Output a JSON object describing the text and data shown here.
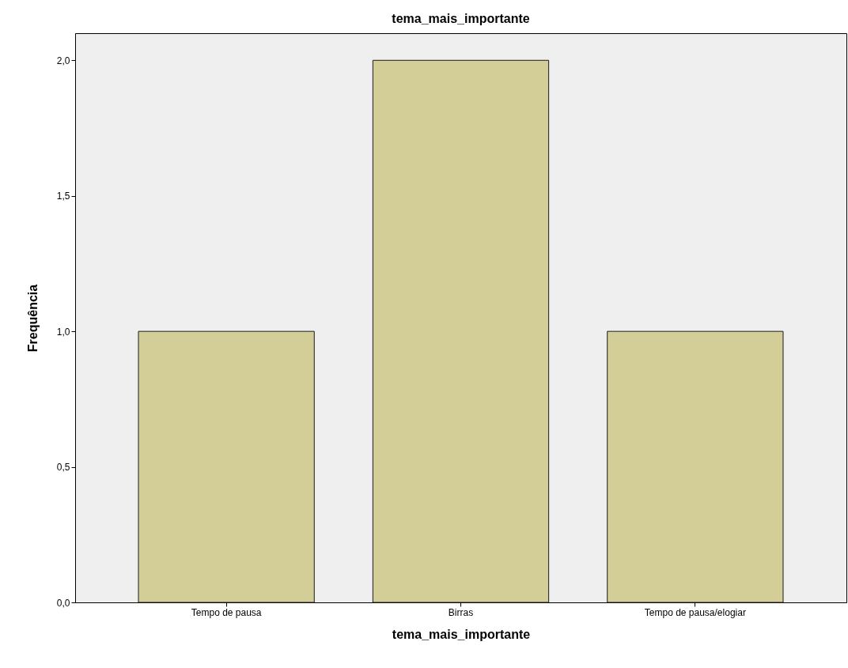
{
  "chart_data": {
    "type": "bar",
    "title": "tema_mais_importante",
    "xlabel": "tema_mais_importante",
    "ylabel": "Frequência",
    "categories": [
      "Tempo de pausa",
      "Birras",
      "Tempo de pausa/elogiar"
    ],
    "values": [
      1,
      2,
      1
    ],
    "color": "#d3ce97",
    "ylim": [
      0,
      2.1
    ],
    "yticks": [
      {
        "value": 0,
        "label": "0,0"
      },
      {
        "value": 0.5,
        "label": "0,5"
      },
      {
        "value": 1,
        "label": "1,0"
      },
      {
        "value": 1.5,
        "label": "1,5"
      },
      {
        "value": 2,
        "label": "2,0"
      }
    ],
    "grid": false
  }
}
